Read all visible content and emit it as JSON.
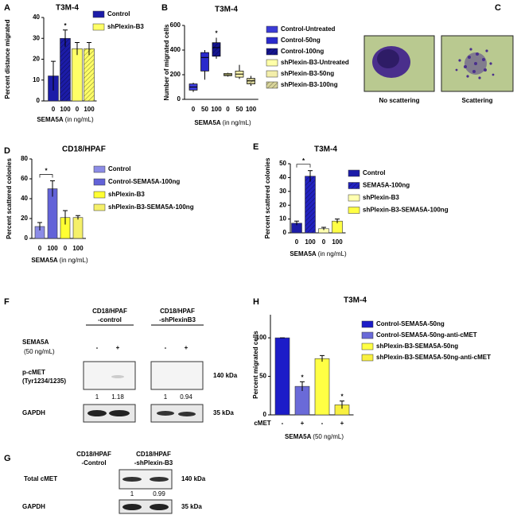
{
  "chart_data": [
    {
      "panel": "A",
      "type": "bar",
      "title": "T3M-4",
      "ylabel": "Percent distance migrated",
      "xlabel": "SEMA5A",
      "xlabel_note": "(in ng/mL)",
      "categories": [
        "0",
        "100",
        "0",
        "100"
      ],
      "ylim": [
        0,
        40
      ],
      "yticks": [
        0,
        10,
        20,
        30,
        40
      ],
      "series": [
        {
          "name": "Control",
          "color": "#1c1ca8",
          "values": [
            12,
            30,
            null,
            null
          ],
          "errors": [
            7,
            4,
            null,
            null
          ],
          "hatched": [
            1
          ]
        },
        {
          "name": "shPlexin-B3",
          "color": "#ffff66",
          "values": [
            null,
            null,
            25,
            25
          ],
          "errors": [
            null,
            null,
            3,
            3
          ],
          "hatched": [
            3
          ]
        }
      ],
      "annotations": [
        {
          "text": "*",
          "category": 1
        }
      ]
    },
    {
      "panel": "B",
      "type": "box",
      "title": "T3M-4",
      "ylabel": "Number of migrated cells",
      "xlabel": "SEMA5A",
      "xlabel_note": "(in ng/mL)",
      "categories": [
        "0",
        "50",
        "100",
        "0",
        "50",
        "100"
      ],
      "ylim": [
        0,
        600
      ],
      "yticks": [
        0,
        200,
        400,
        600
      ],
      "series": [
        {
          "name": "Control-Untreated",
          "color": "#3b3bd6",
          "min": 60,
          "q1": 75,
          "median": 100,
          "q3": 125,
          "max": 135
        },
        {
          "name": "Control-50ng",
          "color": "#2a2acc",
          "min": 160,
          "q1": 230,
          "median": 340,
          "q3": 380,
          "max": 400
        },
        {
          "name": "Control-100ng",
          "color": "#141490",
          "min": 330,
          "q1": 350,
          "median": 420,
          "q3": 460,
          "max": 500,
          "hatched": true
        },
        {
          "name": "shPlexin-B3-Untreated",
          "color": "#ffffa8",
          "min": 185,
          "q1": 192,
          "median": 200,
          "q3": 210,
          "max": 215
        },
        {
          "name": "shPlexin-B3-50ng",
          "color": "#f3eeaa",
          "min": 165,
          "q1": 180,
          "median": 205,
          "q3": 230,
          "max": 280
        },
        {
          "name": "shPlexin-B3-100ng",
          "color": "#d8d49a",
          "min": 110,
          "q1": 125,
          "median": 150,
          "q3": 170,
          "max": 190,
          "hatched": true
        }
      ],
      "annotations": [
        {
          "text": "*",
          "category": 2
        }
      ]
    },
    {
      "panel": "D",
      "type": "bar",
      "title": "CD18/HPAF",
      "ylabel": "Percent scattered colonies",
      "xlabel": "SEMA5A",
      "xlabel_note": "(in ng/mL)",
      "categories": [
        "0",
        "100",
        "0",
        "100"
      ],
      "ylim": [
        0,
        80
      ],
      "yticks": [
        0,
        20,
        40,
        60,
        80
      ],
      "series": [
        {
          "name": "Control",
          "color": "#8c8ce6",
          "values": [
            12,
            null,
            null,
            null
          ],
          "errors": [
            4,
            null,
            null,
            null
          ]
        },
        {
          "name": "Control-SEMA5A-100ng",
          "color": "#6262d8",
          "values": [
            null,
            50,
            null,
            null
          ],
          "errors": [
            null,
            8,
            null,
            null
          ]
        },
        {
          "name": "shPlexin-B3",
          "color": "#ffff33",
          "values": [
            null,
            null,
            21,
            null
          ],
          "errors": [
            null,
            null,
            7,
            null
          ]
        },
        {
          "name": "shPlexin-B3-SEMA5A-100ng",
          "color": "#f5f06a",
          "values": [
            null,
            null,
            null,
            21
          ],
          "errors": [
            null,
            null,
            null,
            2
          ]
        }
      ],
      "annotations": [
        {
          "text": "*",
          "from": 0,
          "to": 1
        }
      ]
    },
    {
      "panel": "E",
      "type": "bar",
      "title": "T3M-4",
      "ylabel": "Percent scattered colonies",
      "xlabel": "SEMA5A",
      "xlabel_note": "(in ng/mL)",
      "categories": [
        "0",
        "100",
        "0",
        "100"
      ],
      "ylim": [
        0,
        50
      ],
      "yticks": [
        0,
        10,
        20,
        30,
        40,
        50
      ],
      "series": [
        {
          "name": "Control",
          "color": "#1c1ca8",
          "values": [
            7,
            null,
            null,
            null
          ],
          "errors": [
            1.5,
            null,
            null,
            null
          ]
        },
        {
          "name": "SEMA5A-100ng",
          "color": "#2222c0",
          "values": [
            null,
            41,
            null,
            null
          ],
          "errors": [
            null,
            4,
            null,
            null
          ],
          "hatched": [
            1
          ]
        },
        {
          "name": "shPlexin-B3",
          "color": "#ffffb0",
          "values": [
            null,
            null,
            3,
            null
          ],
          "errors": [
            null,
            null,
            1,
            null
          ]
        },
        {
          "name": "shPlexin-B3-SEMA5A-100ng",
          "color": "#ffff44",
          "values": [
            null,
            null,
            null,
            8.5
          ],
          "errors": [
            null,
            null,
            null,
            1.5
          ]
        }
      ],
      "annotations": [
        {
          "text": "*",
          "from": 0,
          "to": 1
        }
      ]
    },
    {
      "panel": "H",
      "type": "bar",
      "title": "T3M-4",
      "ylabel": "Percent migrated cells",
      "xlabel": "SEMA5A",
      "xlabel_note": "(50 ng/mL)",
      "row_label": "cMET",
      "categories": [
        "-",
        "+",
        "-",
        "+"
      ],
      "ylim": [
        0,
        130
      ],
      "yticks": [
        0,
        50,
        100
      ],
      "series": [
        {
          "name": "Control-SEMA5A-50ng",
          "color": "#1c1cc8",
          "values": [
            100,
            null,
            null,
            null
          ],
          "errors": [
            0,
            null,
            null,
            null
          ]
        },
        {
          "name": "Control-SEMA5A-50ng-anti-cMET",
          "color": "#6a6ad8",
          "values": [
            null,
            37,
            null,
            null
          ],
          "errors": [
            null,
            6,
            null,
            null
          ]
        },
        {
          "name": "shPlexin-B3-SEMA5A-50ng",
          "color": "#ffff44",
          "values": [
            null,
            null,
            73,
            null
          ],
          "errors": [
            null,
            null,
            4,
            null
          ]
        },
        {
          "name": "shPlexin-B3-SEMA5A-50ng-anti-cMET",
          "color": "#f8f040",
          "values": [
            null,
            null,
            null,
            13
          ],
          "errors": [
            null,
            null,
            null,
            5
          ]
        }
      ],
      "annotations": [
        {
          "text": "*",
          "category": 1
        },
        {
          "text": "*",
          "category": 3
        }
      ]
    }
  ],
  "panel_c": {
    "panel": "C",
    "images": [
      "No scattering",
      "Scattering"
    ]
  },
  "panel_f": {
    "panel": "F",
    "groups": [
      [
        "CD18/HPAF",
        "-control"
      ],
      [
        "CD18/HPAF",
        "-shPlexinB3"
      ]
    ],
    "treatment": [
      "SEMA5A",
      "(50 ng/mL)"
    ],
    "lanes": [
      "-",
      "+",
      "-",
      "+"
    ],
    "target": [
      "p-cMET",
      "(Tyr1234/1235)"
    ],
    "target_size": "140 kDa",
    "quantification": [
      1,
      1.18,
      1,
      0.94
    ],
    "control": "GAPDH",
    "control_size": "35 kDa"
  },
  "panel_g": {
    "panel": "G",
    "groups": [
      [
        "CD18/HPAF",
        "-Control"
      ],
      [
        "CD18/HPAF",
        "-shPlexin-B3"
      ]
    ],
    "target": "Total cMET",
    "target_size": "140 kDa",
    "quantification": [
      1,
      0.99
    ],
    "control": "GAPDH",
    "control_size": "35 kDa"
  }
}
